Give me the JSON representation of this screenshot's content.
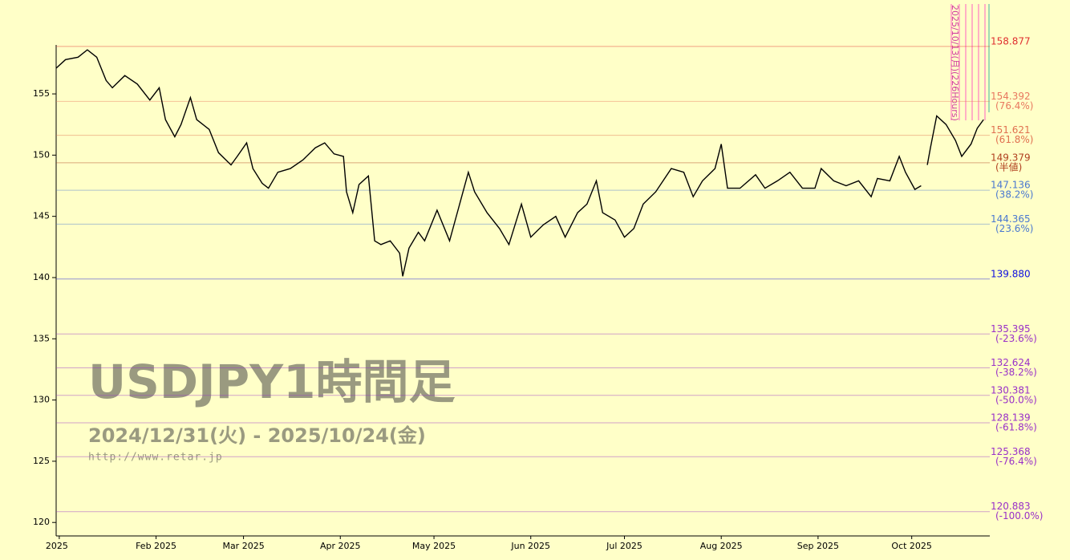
{
  "chart_data": {
    "type": "line",
    "color": "#000000",
    "x": [
      "2024-12-31",
      "2025-01-03",
      "2025-01-07",
      "2025-01-10",
      "2025-01-13",
      "2025-01-16",
      "2025-01-18",
      "2025-01-22",
      "2025-01-26",
      "2025-01-30",
      "2025-02-02",
      "2025-02-04",
      "2025-02-07",
      "2025-02-09",
      "2025-02-12",
      "2025-02-14",
      "2025-02-18",
      "2025-02-21",
      "2025-02-25",
      "2025-02-27",
      "2025-03-02",
      "2025-03-04",
      "2025-03-07",
      "2025-03-09",
      "2025-03-12",
      "2025-03-16",
      "2025-03-20",
      "2025-03-24",
      "2025-03-27",
      "2025-03-30",
      "2025-04-02",
      "2025-04-03",
      "2025-04-05",
      "2025-04-07",
      "2025-04-10",
      "2025-04-12",
      "2025-04-14",
      "2025-04-17",
      "2025-04-20",
      "2025-04-21",
      "2025-04-23",
      "2025-04-26",
      "2025-04-28",
      "2025-05-02",
      "2025-05-06",
      "2025-05-09",
      "2025-05-12",
      "2025-05-14",
      "2025-05-18",
      "2025-05-22",
      "2025-05-25",
      "2025-05-29",
      "2025-06-01",
      "2025-06-05",
      "2025-06-09",
      "2025-06-12",
      "2025-06-16",
      "2025-06-19",
      "2025-06-22",
      "2025-06-24",
      "2025-06-28",
      "2025-07-01",
      "2025-07-04",
      "2025-07-07",
      "2025-07-11",
      "2025-07-16",
      "2025-07-20",
      "2025-07-23",
      "2025-07-26",
      "2025-07-30",
      "2025-08-01",
      "2025-08-03",
      "2025-08-07",
      "2025-08-12",
      "2025-08-15",
      "2025-08-19",
      "2025-08-23",
      "2025-08-27",
      "2025-08-31",
      "2025-09-02",
      "2025-09-06",
      "2025-09-10",
      "2025-09-14",
      "2025-09-18",
      "2025-09-20",
      "2025-09-24",
      "2025-09-27",
      "2025-09-29",
      "2025-10-02",
      "2025-10-04",
      "2025-10-05",
      "2025-10-06",
      "2025-10-07",
      "2025-10-09",
      "2025-10-12",
      "2025-10-15",
      "2025-10-17",
      "2025-10-20",
      "2025-10-22",
      "2025-10-24"
    ],
    "values": [
      157.1,
      157.8,
      158.0,
      158.6,
      158.0,
      156.1,
      155.5,
      156.5,
      155.8,
      154.5,
      155.5,
      152.9,
      151.5,
      152.5,
      154.7,
      152.9,
      152.1,
      150.2,
      149.2,
      149.9,
      151.0,
      148.9,
      147.7,
      147.3,
      148.6,
      148.9,
      149.6,
      150.6,
      151.0,
      150.1,
      149.9,
      147.0,
      145.3,
      147.6,
      148.3,
      143.0,
      142.7,
      143.0,
      142.0,
      140.1,
      142.4,
      143.7,
      143.0,
      145.5,
      143.0,
      145.8,
      148.6,
      147.0,
      145.3,
      144.0,
      142.7,
      146.0,
      143.3,
      144.3,
      145.0,
      143.3,
      145.3,
      146.0,
      147.9,
      145.3,
      144.7,
      143.3,
      144.0,
      146.0,
      147.0,
      148.9,
      148.6,
      146.6,
      147.9,
      148.9,
      150.9,
      147.3,
      147.3,
      148.4,
      147.3,
      147.9,
      148.6,
      147.3,
      147.3,
      148.9,
      147.9,
      147.5,
      147.9,
      146.6,
      148.1,
      147.9,
      149.9,
      148.6,
      147.2,
      147.5,
      null,
      149.2,
      150.6,
      153.2,
      152.5,
      151.2,
      149.9,
      150.9,
      152.2,
      152.9
    ],
    "xlim": [
      "2024-12-31",
      "2025-10-26"
    ],
    "xticks": [
      {
        "value": "2025-01-01",
        "label": "2025"
      },
      {
        "value": "2025-02-01",
        "label": "Feb 2025"
      },
      {
        "value": "2025-03-01",
        "label": "Mar 2025"
      },
      {
        "value": "2025-04-01",
        "label": "Apr 2025"
      },
      {
        "value": "2025-05-01",
        "label": "May 2025"
      },
      {
        "value": "2025-06-01",
        "label": "Jun 2025"
      },
      {
        "value": "2025-07-01",
        "label": "Jul 2025"
      },
      {
        "value": "2025-08-01",
        "label": "Aug 2025"
      },
      {
        "value": "2025-09-01",
        "label": "Sep 2025"
      },
      {
        "value": "2025-10-01",
        "label": "Oct 2025"
      }
    ],
    "ylim": [
      118.9,
      159.0
    ],
    "yticks": [
      120,
      125,
      130,
      135,
      140,
      145,
      150,
      155
    ],
    "levels": [
      {
        "value": 158.877,
        "label": "158.877",
        "color": "#e03030"
      },
      {
        "value": 154.392,
        "label": "154.392",
        "ratio": "(76.4%)",
        "color": "#e87860"
      },
      {
        "value": 151.621,
        "label": "151.621",
        "ratio": "(61.8%)",
        "color": "#e07050"
      },
      {
        "value": 149.379,
        "label": "149.379",
        "ratio": "(半値)",
        "color": "#b04020"
      },
      {
        "value": 147.136,
        "label": "147.136",
        "ratio": "(38.2%)",
        "color": "#4a78d0"
      },
      {
        "value": 144.365,
        "label": "144.365",
        "ratio": "(23.6%)",
        "color": "#4a78d0"
      },
      {
        "value": 139.88,
        "label": "139.880",
        "color": "#1010e0"
      },
      {
        "value": 135.395,
        "label": "135.395",
        "ratio": "(-23.6%)",
        "color": "#9930c8"
      },
      {
        "value": 132.624,
        "label": "132.624",
        "ratio": "(-38.2%)",
        "color": "#9930c8"
      },
      {
        "value": 130.381,
        "label": "130.381",
        "ratio": "(-50.0%)",
        "color": "#9930c8"
      },
      {
        "value": 128.139,
        "label": "128.139",
        "ratio": "(-61.8%)",
        "color": "#9930c8"
      },
      {
        "value": 125.368,
        "label": "125.368",
        "ratio": "(-76.4%)",
        "color": "#9930c8"
      },
      {
        "value": 120.883,
        "label": "120.883",
        "ratio": "(-100.0%)",
        "color": "#9930c8"
      }
    ],
    "annotations": [
      "USDJPY1時間足",
      "2024/12/31(火) - 2025/10/24(金)",
      "http://www.retar.jp",
      "2025/10/13(月)(226Hours)"
    ]
  }
}
